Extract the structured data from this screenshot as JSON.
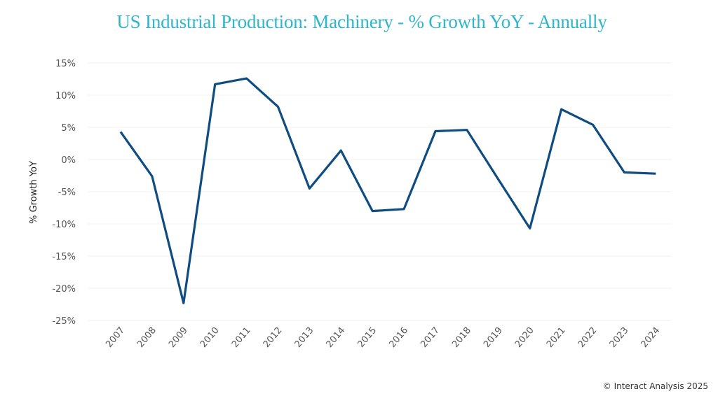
{
  "chart_data": {
    "type": "line",
    "title": "US Industrial Production: Machinery - % Growth YoY - Annually",
    "xlabel": "",
    "ylabel": "% Growth YoY",
    "ylim": [
      -25,
      15
    ],
    "yticks": [
      15,
      10,
      5,
      0,
      -5,
      -10,
      -15,
      -20,
      -25
    ],
    "ytick_labels": [
      "15%",
      "10%",
      "5%",
      "0%",
      "-5%",
      "-10%",
      "-15%",
      "-20%",
      "-25%"
    ],
    "grid": true,
    "legend": "none",
    "categories": [
      "2007",
      "2008",
      "2009",
      "2010",
      "2011",
      "2012",
      "2013",
      "2014",
      "2015",
      "2016",
      "2017",
      "2018",
      "2019",
      "2020",
      "2021",
      "2022",
      "2023",
      "2024"
    ],
    "series": [
      {
        "name": "% Growth YoY",
        "color": "#0f4c81",
        "values": [
          4.3,
          -2.6,
          -22.3,
          11.7,
          12.6,
          8.2,
          -4.5,
          1.4,
          -8.0,
          -7.7,
          4.4,
          4.6,
          -3.1,
          -10.7,
          7.8,
          5.4,
          -2.0,
          -2.2
        ]
      }
    ]
  },
  "footer": {
    "copyright": "© Interact Analysis 2025"
  },
  "colors": {
    "title": "#2fb5cc",
    "line": "#0f4c81",
    "grid": "#f0f0f0"
  }
}
